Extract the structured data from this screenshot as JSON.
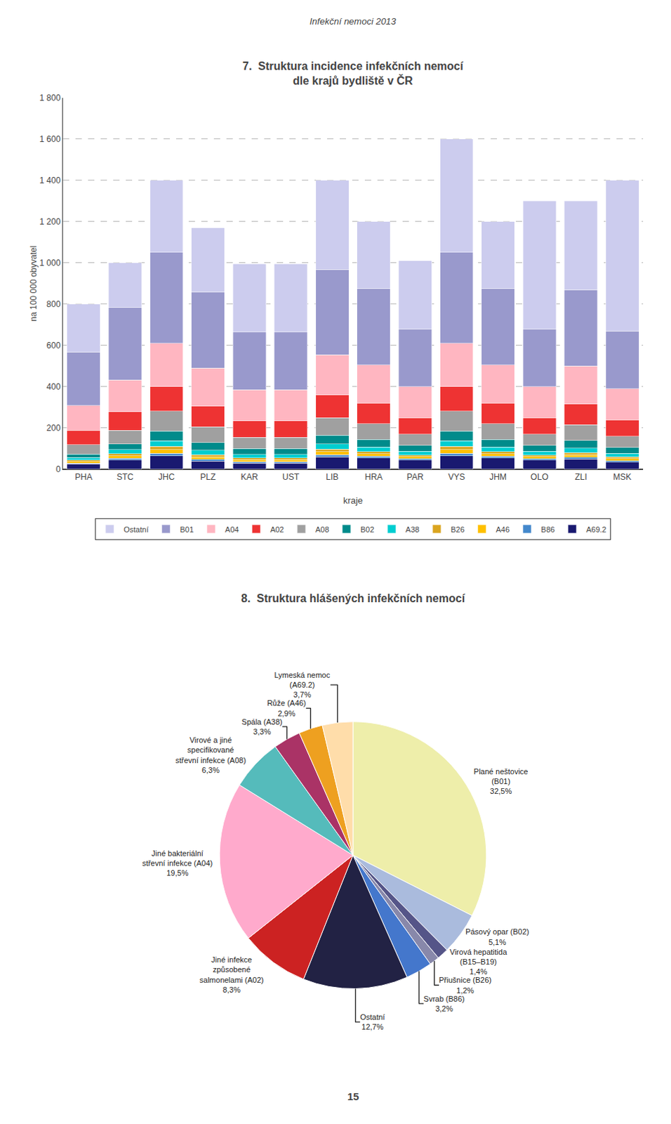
{
  "title": "Infekční nemoci 2013",
  "annotations": [
    "15"
  ],
  "chart_data": [
    {
      "type": "bar",
      "title": "7.  Struktura incidence infekčních nemocí\ndle krajů bydliště v ČR",
      "x_label": "kraje",
      "y_label": "na 100 000 obyvatel",
      "categories": [
        "PHA",
        "STC",
        "JHC",
        "PLZ",
        "KAR",
        "UST",
        "LIB",
        "HRA",
        "PAR",
        "VYS",
        "JHM",
        "OLO",
        "ZLI",
        "MSK"
      ],
      "stacked": true,
      "grid": true,
      "legend": "bottom",
      "ylim": [
        0,
        1800
      ],
      "yticks": [
        0,
        200,
        400,
        600,
        800,
        {
          "value": 1000,
          "label": "1 000"
        },
        {
          "value": 1200,
          "label": "1 200"
        },
        {
          "value": 1400,
          "label": "1 400"
        },
        {
          "value": 1600,
          "label": "1 600"
        },
        {
          "value": 1800,
          "label": "1 800"
        }
      ],
      "series": [
        {
          "name": "A69.2",
          "color": "#191970",
          "values": [
            25,
            45,
            65,
            40,
            30,
            30,
            60,
            55,
            45,
            65,
            55,
            45,
            50,
            35
          ]
        },
        {
          "name": "B86",
          "color": "#4488CC",
          "values": [
            5,
            8,
            12,
            8,
            6,
            6,
            10,
            8,
            6,
            12,
            8,
            6,
            8,
            6
          ]
        },
        {
          "name": "A46",
          "color": "#FFC000",
          "values": [
            8,
            12,
            18,
            12,
            10,
            10,
            15,
            12,
            10,
            18,
            12,
            10,
            12,
            10
          ]
        },
        {
          "name": "B26",
          "color": "#DAA520",
          "values": [
            6,
            10,
            15,
            10,
            8,
            8,
            12,
            10,
            8,
            15,
            10,
            8,
            10,
            8
          ]
        },
        {
          "name": "A38",
          "color": "#00CED1",
          "values": [
            12,
            20,
            28,
            22,
            18,
            18,
            25,
            22,
            18,
            28,
            22,
            18,
            22,
            18
          ]
        },
        {
          "name": "B02",
          "color": "#008B8B",
          "values": [
            18,
            28,
            48,
            38,
            28,
            28,
            42,
            38,
            28,
            48,
            38,
            28,
            38,
            28
          ]
        },
        {
          "name": "A08",
          "color": "#A0A0A0",
          "values": [
            45,
            65,
            95,
            75,
            55,
            55,
            85,
            75,
            55,
            95,
            75,
            55,
            75,
            55
          ]
        },
        {
          "name": "A02",
          "color": "#EE3333",
          "values": [
            70,
            90,
            120,
            100,
            80,
            80,
            110,
            100,
            80,
            120,
            100,
            80,
            100,
            80
          ]
        },
        {
          "name": "A04",
          "color": "#FFB6C1",
          "values": [
            120,
            155,
            210,
            185,
            150,
            150,
            195,
            185,
            150,
            210,
            185,
            150,
            185,
            150
          ]
        },
        {
          "name": "B01",
          "color": "#9999CC",
          "values": [
            260,
            350,
            440,
            370,
            280,
            280,
            415,
            370,
            280,
            440,
            370,
            280,
            370,
            280
          ]
        },
        {
          "name": "Ostatní",
          "color": "#CCCCEE",
          "values": [
            231,
            217,
            349,
            310,
            331,
            331,
            431,
            325,
            331,
            549,
            325,
            621,
            430,
            730
          ]
        }
      ]
    },
    {
      "type": "pie",
      "title": "8.  Struktura hlášených infekčních nemocí",
      "values": [
        32.5,
        5.1,
        1.4,
        1.2,
        3.2,
        12.7,
        8.3,
        19.5,
        6.3,
        3.3,
        2.9,
        3.7
      ],
      "colors": [
        "#EEEEAA",
        "#AABBDD",
        "#555588",
        "#8888AA",
        "#4477CC",
        "#222244",
        "#CC2222",
        "#FFAACC",
        "#55BBBB",
        "#AA3366",
        "#EEA020",
        "#FFDDAA"
      ],
      "labels": [
        "Plané neštovice\n(B01)\n32,5%",
        "Pásový opar (B02)\n5,1%",
        "Virová hepatitida\n(B15–B19)\n1,4%",
        "Přiušnice (B26)\n1,2%",
        "Svrab (B86)\n3,2%",
        "Ostatní\n12,7%",
        "Jiné infekce\nzpůsobené\nsalmonelami (A02)\n8,3%",
        "Jiné bakteriální\nstřevní infekce (A04)\n19,5%",
        "Virové a jiné\nspecifikované\nstřevní infekce (A08)\n6,3%",
        "Spála (A38)\n3,3%",
        "Růže (A46)\n2,9%",
        "Lymeská nemoc\n(A69.2)\n3,7%"
      ]
    }
  ]
}
